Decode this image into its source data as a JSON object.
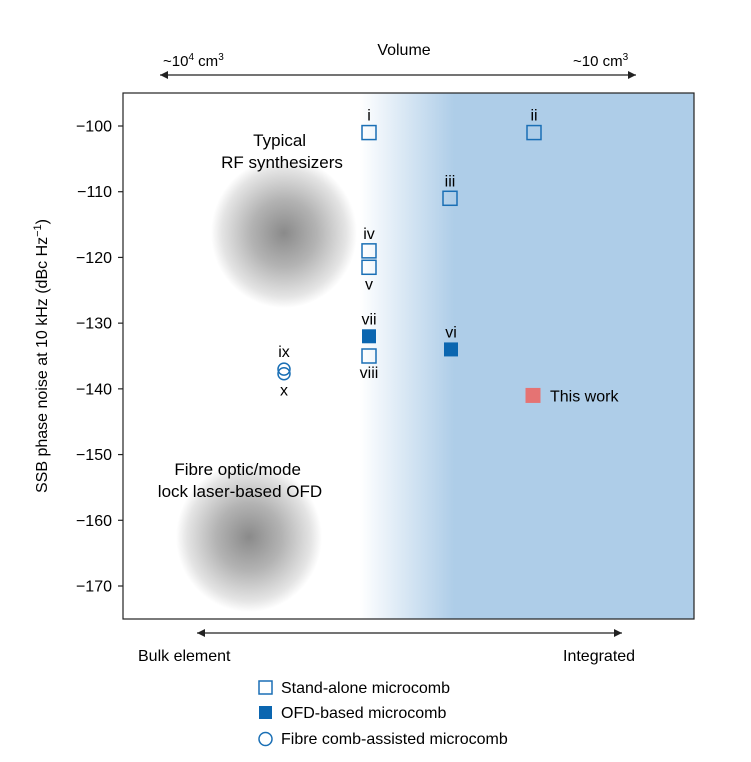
{
  "chart_data": {
    "type": "scatter",
    "ylabel_main": "SSB phase noise at 10 kHz (dBc Hz",
    "ylabel_sup": "−1",
    "ylabel_close": ")",
    "ylim": [
      -175,
      -95
    ],
    "yticks": [
      -100,
      -110,
      -120,
      -130,
      -140,
      -150,
      -160,
      -170
    ],
    "ytick_labels": [
      "−100",
      "−110",
      "−120",
      "−130",
      "−140",
      "−150",
      "−160",
      "−170"
    ],
    "top_axis": {
      "title": "Volume",
      "left_base": "~10",
      "left_exp": "4",
      "left_unit": " cm",
      "left_unit_exp": "3",
      "right_text": "~10 cm",
      "right_unit_exp": "3"
    },
    "bottom_axis": {
      "left_label": "Bulk element",
      "right_label": "Integrated"
    },
    "regions": [
      {
        "name": "rf",
        "label_lines": [
          "Typical",
          "RF synthesizers"
        ],
        "y_center": -116.5
      },
      {
        "name": "ofd",
        "label_lines": [
          "Fibre optic/mode",
          "lock laser-based OFD"
        ],
        "y_center": -162.5
      }
    ],
    "points": [
      {
        "label": "i",
        "category": "standalone",
        "y": -101,
        "label_pos": "above"
      },
      {
        "label": "ii",
        "category": "standalone",
        "y": -101,
        "label_pos": "above"
      },
      {
        "label": "iii",
        "category": "standalone",
        "y": -111,
        "label_pos": "above"
      },
      {
        "label": "iv",
        "category": "standalone",
        "y": -119,
        "label_pos": "above"
      },
      {
        "label": "v",
        "category": "standalone",
        "y": -121.5,
        "label_pos": "below"
      },
      {
        "label": "vii",
        "category": "ofd",
        "y": -132,
        "label_pos": "above"
      },
      {
        "label": "vi",
        "category": "ofd",
        "y": -134,
        "label_pos": "above"
      },
      {
        "label": "viii",
        "category": "standalone",
        "y": -135,
        "label_pos": "below"
      },
      {
        "label": "ix",
        "category": "fibre",
        "y": -137,
        "label_pos": "above"
      },
      {
        "label": "x",
        "category": "fibre",
        "y": -137.7,
        "label_pos": "below"
      },
      {
        "label": "This work",
        "category": "thiswork",
        "y": -141,
        "label_pos": "right"
      }
    ],
    "legend": [
      {
        "category": "standalone",
        "label": "Stand-alone microcomb"
      },
      {
        "category": "ofd",
        "label": "OFD-based microcomb"
      },
      {
        "category": "fibre",
        "label": "Fibre comb-assisted microcomb"
      }
    ],
    "legend_placement": "bottom-center",
    "grid": false
  },
  "colors": {
    "standalone": "#1a6fb5",
    "ofd": "#0b66b0",
    "fibre": "#1a6fb5",
    "thiswork": "#e57373",
    "gradient_light": "#f2f7fc",
    "gradient_dark": "#aecde8"
  }
}
